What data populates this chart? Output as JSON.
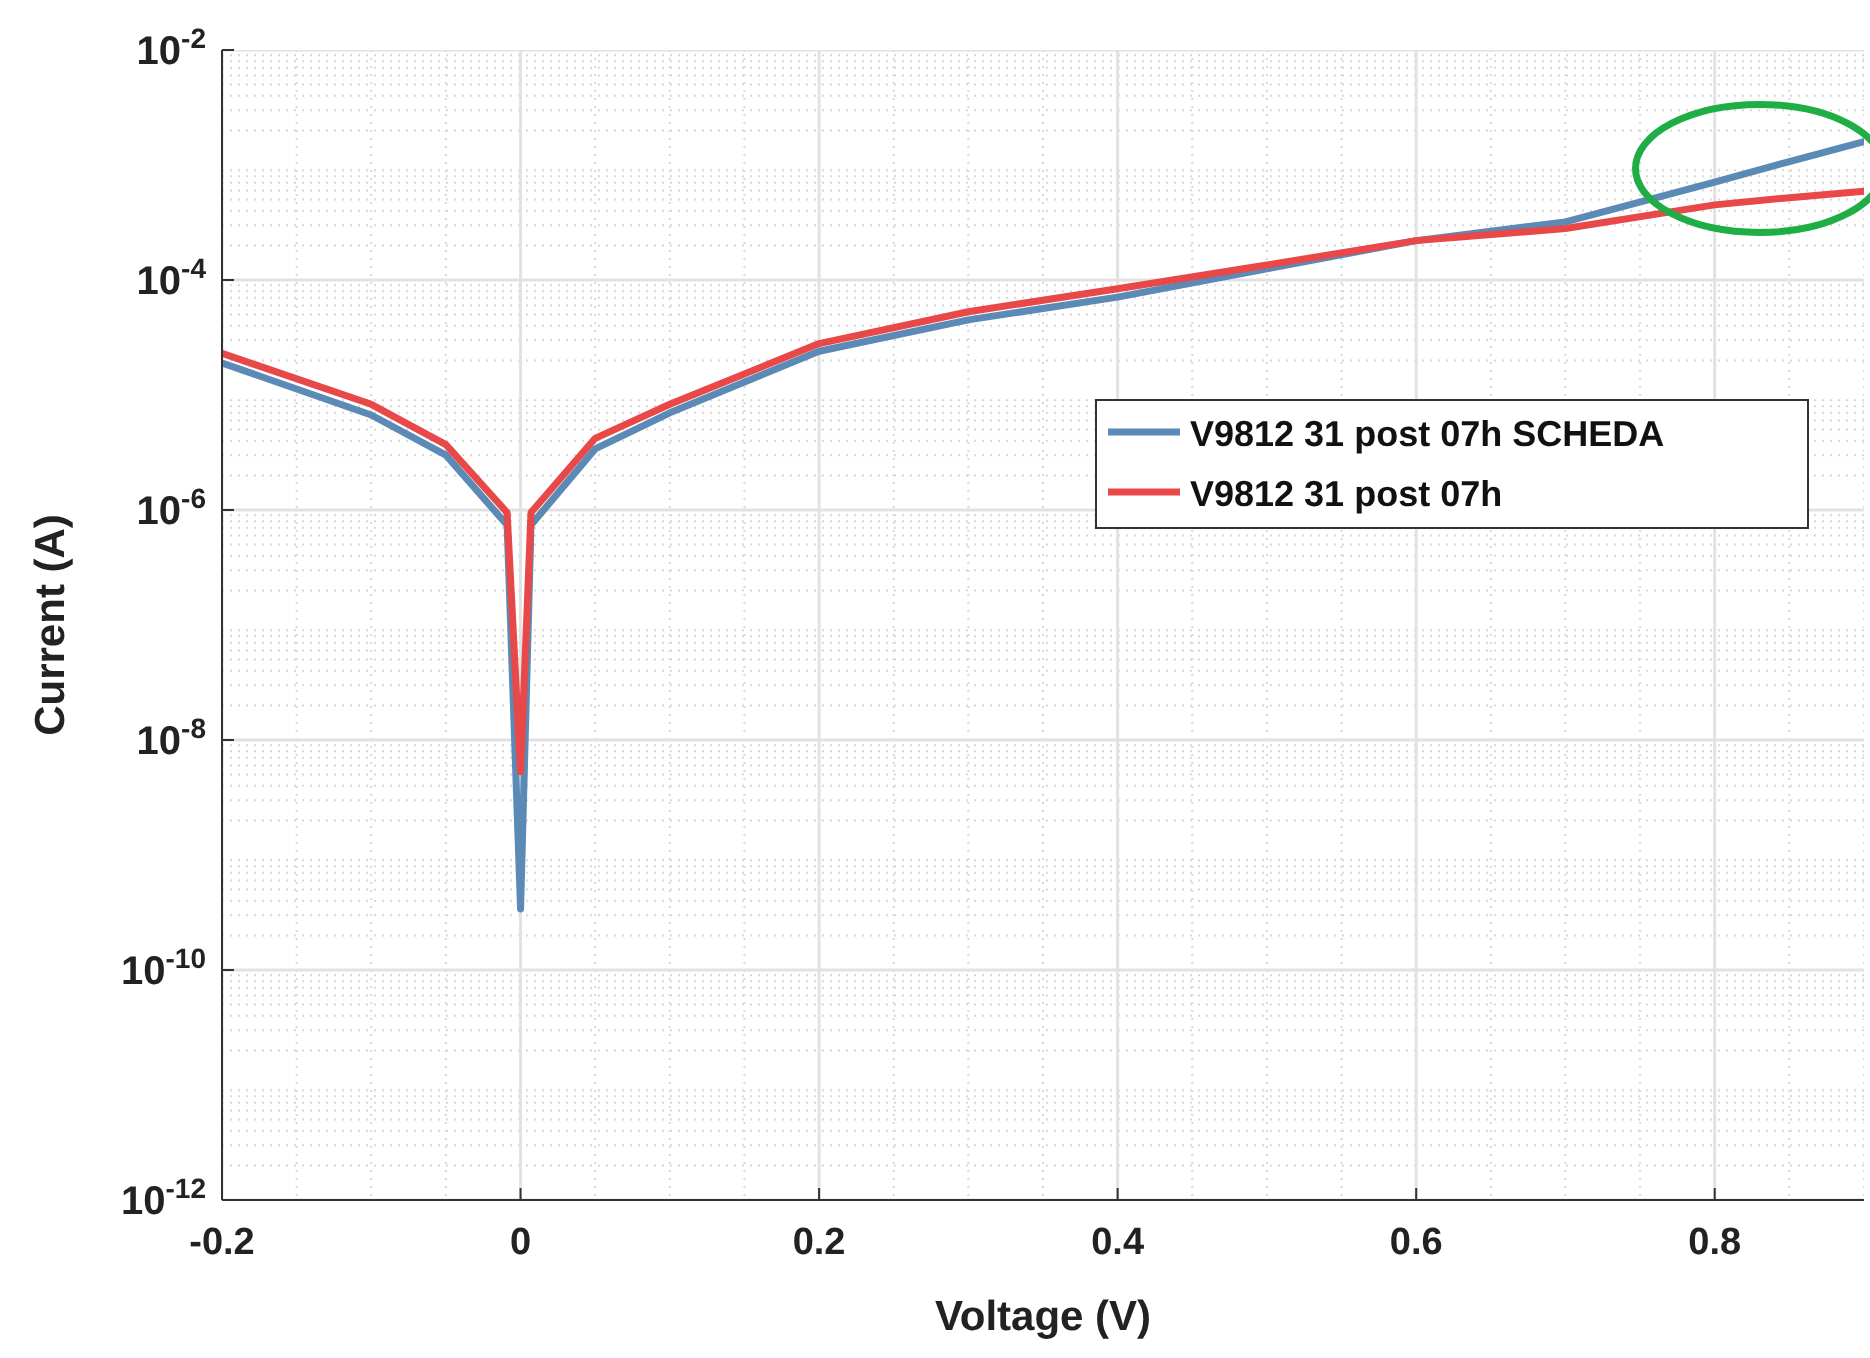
{
  "chart_data": {
    "type": "line",
    "xlabel": "Voltage (V)",
    "ylabel": "Current (A)",
    "log": "y",
    "grid": true,
    "legend": "right",
    "line_style": "solid",
    "marker": "none",
    "xlim": [
      -0.2,
      0.9
    ],
    "xticks": [
      -0.2,
      0,
      0.2,
      0.4,
      0.6,
      0.8
    ],
    "ylim": [
      1e-12,
      0.01
    ],
    "yticks": [
      {
        "value": 1e-12,
        "label": "10$^{-12}$"
      },
      {
        "value": 1e-10,
        "label": "10$^{-10}$"
      },
      {
        "value": 1e-08,
        "label": "10$^{-8}$"
      },
      {
        "value": 1e-06,
        "label": "10$^{-6}$"
      },
      {
        "value": 0.0001,
        "label": "10$^{-4}$"
      },
      {
        "value": 0.01,
        "label": "10$^{-2}$"
      }
    ],
    "x": [
      -0.2,
      -0.1,
      -0.05,
      -0.009,
      0,
      0.007,
      0.05,
      0.1,
      0.2,
      0.3,
      0.4,
      0.5,
      0.6,
      0.7,
      0.8,
      0.85,
      0.9
    ],
    "series": [
      {
        "name": "V9812 31 post 07h SCHEDA",
        "color": "#5a8ab5",
        "values": [
          1.9e-05,
          6.7e-06,
          3e-06,
          7.4e-07,
          3.4e-10,
          7.4e-07,
          3.4e-06,
          7e-06,
          2.4e-05,
          4.5e-05,
          7.1e-05,
          0.000125,
          0.00022,
          0.00032,
          0.00071,
          0.00107,
          0.0016
        ]
      },
      {
        "name": "V9812 31 post 07h",
        "color": "#e84848",
        "values": [
          2.3e-05,
          8.3e-06,
          3.7e-06,
          9.5e-07,
          5.3e-09,
          9.5e-07,
          4.2e-06,
          8.3e-06,
          2.8e-05,
          5.3e-05,
          8.4e-05,
          0.000135,
          0.00022,
          0.00028,
          0.00045,
          0.00052,
          0.00059
        ]
      }
    ]
  }
}
